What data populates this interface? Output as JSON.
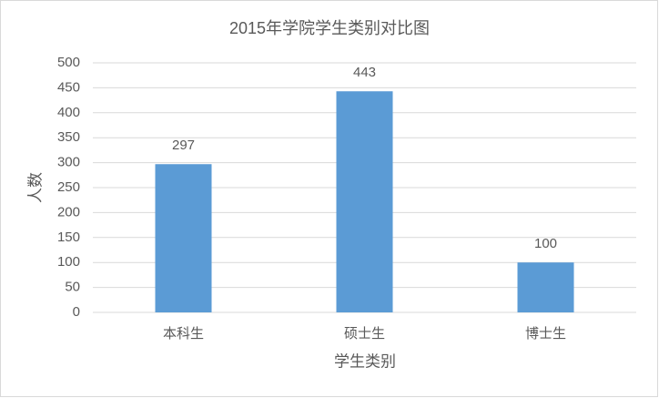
{
  "chart_data": {
    "type": "bar",
    "title": "2015年学院学生类别对比图",
    "x_label": "学生类别",
    "y_label": "人数",
    "categories": [
      "本科生",
      "硕士生",
      "博士生"
    ],
    "values": [
      297,
      443,
      100
    ],
    "color": "#5b9bd5",
    "ylim": [
      0,
      500
    ],
    "yticks": [
      0,
      50,
      100,
      150,
      200,
      250,
      300,
      350,
      400,
      450,
      500
    ],
    "grid": true,
    "data_labels": true
  }
}
